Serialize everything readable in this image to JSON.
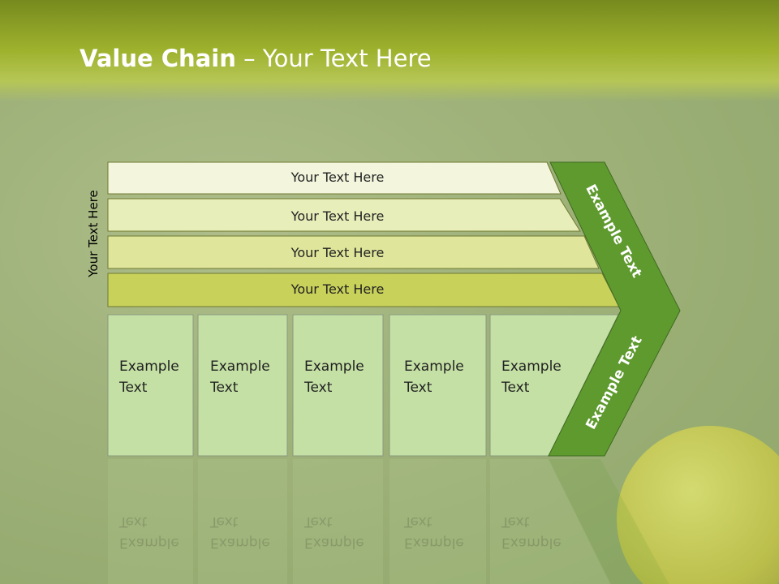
{
  "title": {
    "bold": "Value Chain",
    "rest": " – Your Text Here"
  },
  "side_label": "Your Text Here",
  "rows": [
    "Your Text Here",
    "Your Text Here",
    "Your Text Here",
    "Your Text Here"
  ],
  "boxes": [
    {
      "l1": "Example",
      "l2": "Text"
    },
    {
      "l1": "Example",
      "l2": "Text"
    },
    {
      "l1": "Example",
      "l2": "Text"
    },
    {
      "l1": "Example",
      "l2": "Text"
    },
    {
      "l1": "Example",
      "l2": "Text"
    }
  ],
  "chevron": {
    "top": "Example Text",
    "bottom": "Example Text"
  },
  "colors": {
    "row1": "#f3f6dc",
    "row2": "#e8eeba",
    "row3": "#dfe69b",
    "row4": "#c8d15a",
    "box": "#c4e0a4",
    "chevron": "#5f9a2f",
    "header": "#9fb22e"
  }
}
